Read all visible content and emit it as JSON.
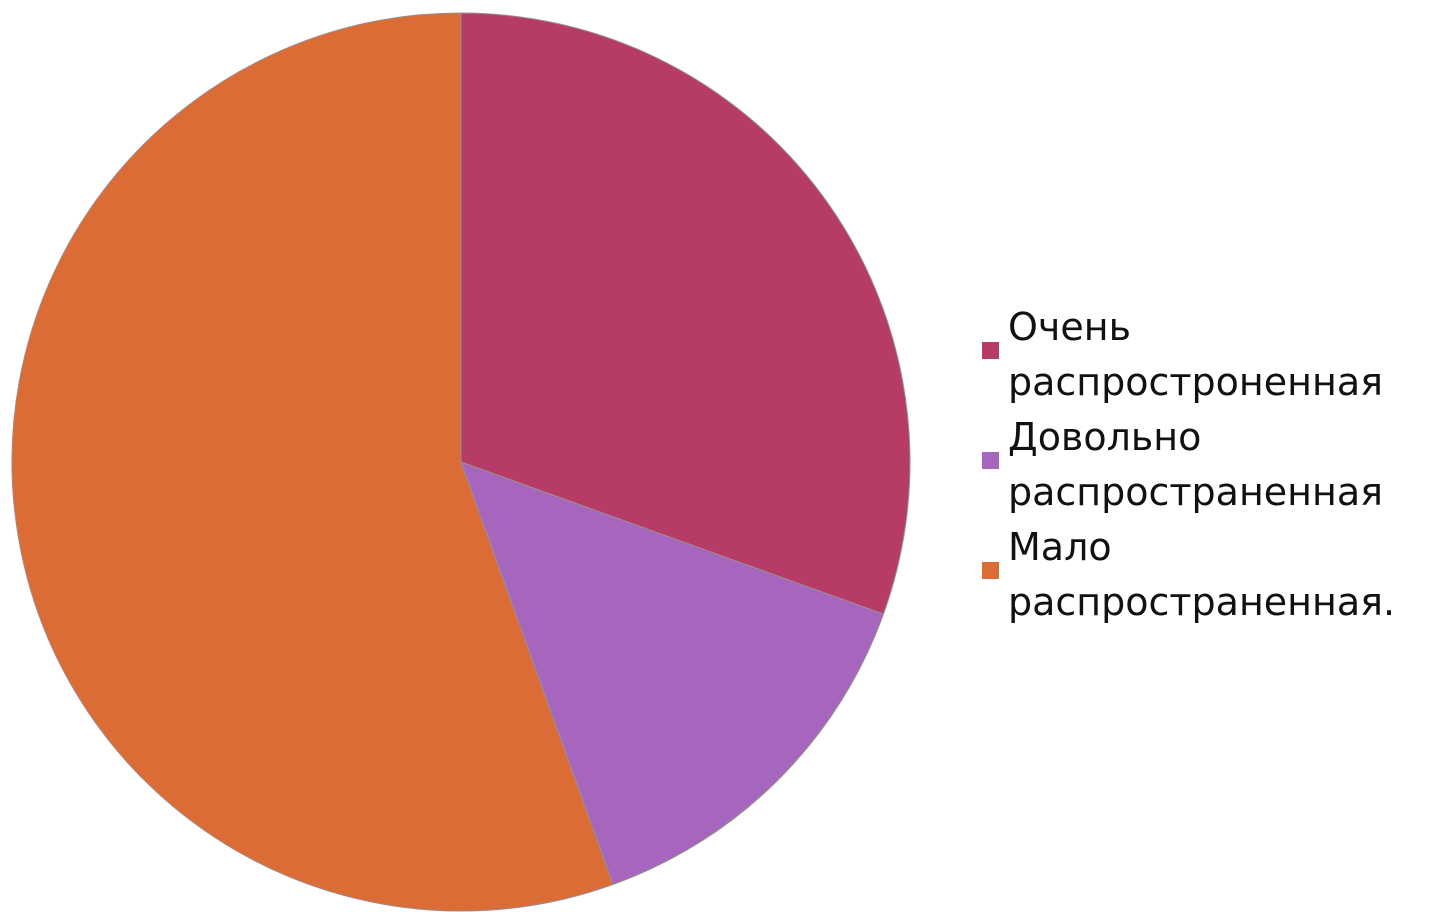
{
  "chart_data": {
    "type": "pie",
    "title": "",
    "start_angle_deg": 0,
    "direction": "clockwise",
    "legend_position": "right",
    "slices": [
      {
        "label": "Очень распространенная",
        "label_lines": [
          "Очень",
          "распростроненная"
        ],
        "value": 30.5,
        "color": "#b73b67"
      },
      {
        "label": "Довольно распространенная",
        "label_lines": [
          "Довольно",
          "распространенная"
        ],
        "value": 14.0,
        "color": "#a766bd"
      },
      {
        "label": "Мало распространенная.",
        "label_lines": [
          "Мало",
          "распространенная."
        ],
        "value": 55.5,
        "color": "#dc6c35"
      }
    ]
  }
}
